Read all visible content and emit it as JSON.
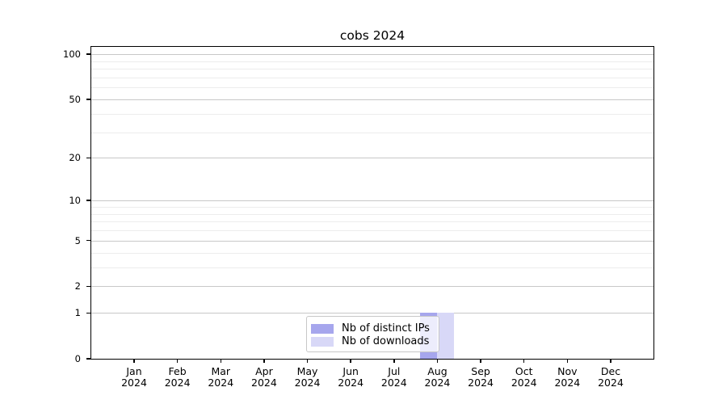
{
  "chart_data": {
    "type": "bar",
    "title": "cobs 2024",
    "categories": [
      {
        "month": "Jan",
        "year": "2024"
      },
      {
        "month": "Feb",
        "year": "2024"
      },
      {
        "month": "Mar",
        "year": "2024"
      },
      {
        "month": "Apr",
        "year": "2024"
      },
      {
        "month": "May",
        "year": "2024"
      },
      {
        "month": "Jun",
        "year": "2024"
      },
      {
        "month": "Jul",
        "year": "2024"
      },
      {
        "month": "Aug",
        "year": "2024"
      },
      {
        "month": "Sep",
        "year": "2024"
      },
      {
        "month": "Oct",
        "year": "2024"
      },
      {
        "month": "Nov",
        "year": "2024"
      },
      {
        "month": "Dec",
        "year": "2024"
      }
    ],
    "series": [
      {
        "name": "Nb of distinct IPs",
        "color": "#a6a6ed",
        "values": [
          0,
          0,
          0,
          0,
          0,
          0,
          0,
          1,
          0,
          0,
          0,
          0
        ]
      },
      {
        "name": "Nb of downloads",
        "color": "#d8d8f7",
        "values": [
          0,
          0,
          0,
          0,
          0,
          0,
          0,
          1,
          0,
          0,
          0,
          0
        ]
      }
    ],
    "xlabel": "",
    "ylabel": "",
    "y_scale": "log1p",
    "ylim": [
      0,
      112
    ],
    "y_major_ticks": [
      0,
      1,
      2,
      5,
      10,
      20,
      50,
      100
    ],
    "y_minor_gridlines": [
      3,
      4,
      6,
      7,
      8,
      9,
      30,
      40,
      60,
      70,
      80,
      90
    ],
    "grid": true,
    "legend_position": "bottom-center-inside"
  },
  "colors": {
    "major_grid": "#c8c8c8",
    "minor_grid": "#ececec",
    "spine": "#000000",
    "background": "#ffffff"
  }
}
